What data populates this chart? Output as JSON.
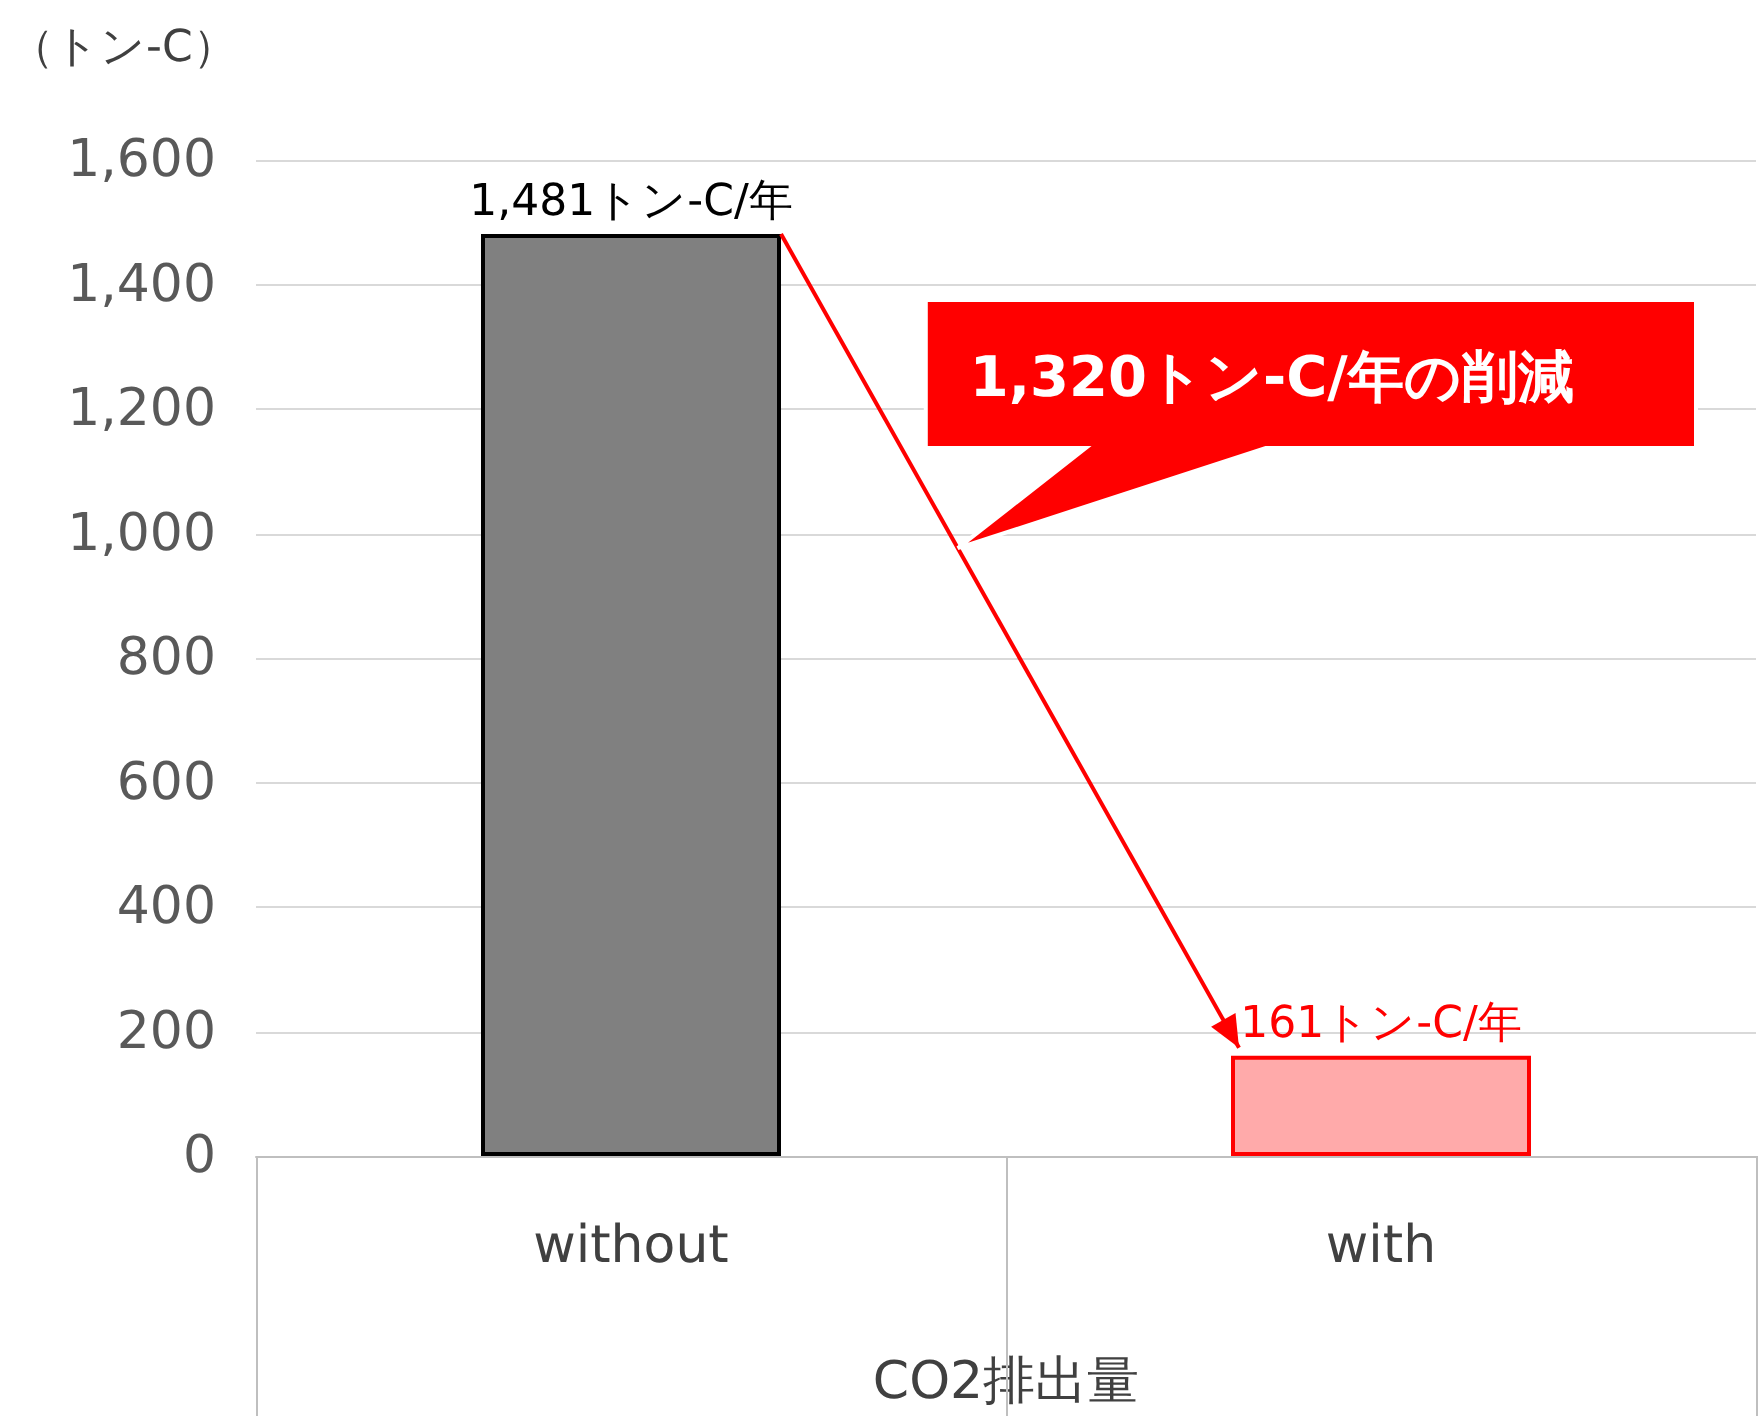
{
  "chart_data": {
    "type": "bar",
    "ylabel": "（トン-C）",
    "xlabel": "CO2排出量",
    "categories": [
      "without",
      "with"
    ],
    "values": [
      1481,
      161
    ],
    "colors": [
      "#808080",
      "#ffaaaa"
    ],
    "value_labels": [
      "1,481トン-C/年",
      "161トン-C/年"
    ],
    "annotations": [
      "1,320トン-C/年の削減"
    ],
    "ylim": [
      0,
      1600
    ],
    "yticks": [
      0,
      200,
      400,
      600,
      800,
      {
        "value": 1000,
        "label": "1,000"
      },
      {
        "value": 1200,
        "label": "1,200"
      },
      {
        "value": 1400,
        "label": "1,400"
      },
      {
        "value": 1600,
        "label": "1,600"
      }
    ],
    "grid": "y"
  }
}
